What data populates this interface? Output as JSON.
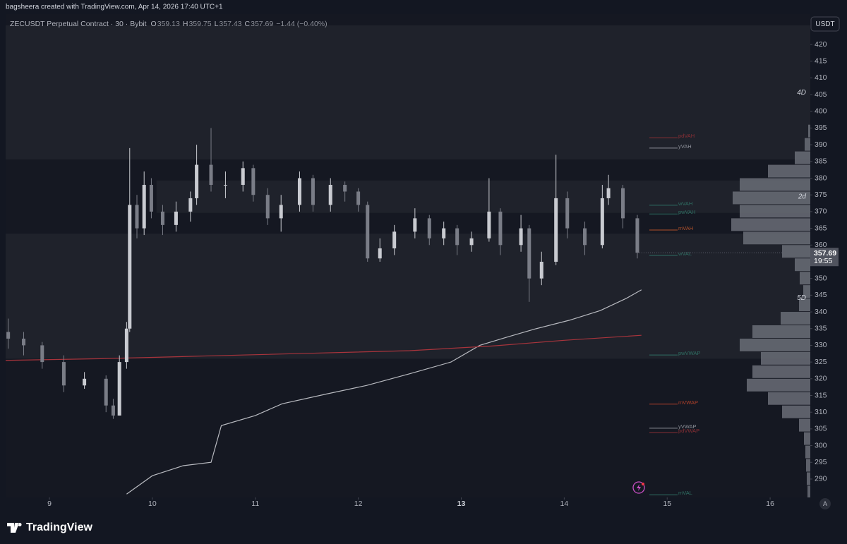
{
  "header": {
    "credit": "bagsheera created with TradingView.com, Apr 14, 2026 17:40 UTC+1",
    "symbol": "ZECUSDT Perpetual Contract · 30 · Bybit",
    "ohlc": [
      {
        "label": "O",
        "value": "359.13"
      },
      {
        "label": "H",
        "value": "359.75"
      },
      {
        "label": "L",
        "value": "357.43"
      },
      {
        "label": "C",
        "value": "357.69"
      }
    ],
    "change": "−1.44 (−0.40%)",
    "currency": "USDT",
    "countdown": "19:55",
    "auto_button": "A"
  },
  "footer": {
    "brand": "TradingView"
  },
  "chart_data": {
    "type": "candlestick",
    "xlim": [
      8.575,
      16.39
    ],
    "ylim": [
      284.5,
      425.7
    ],
    "xticks": [
      9,
      10,
      11,
      12,
      13,
      14,
      15,
      16
    ],
    "highlight_xtick": 13,
    "yticks": [
      290,
      295,
      300,
      305,
      310,
      315,
      320,
      325,
      330,
      335,
      340,
      345,
      350,
      355,
      360,
      365,
      370,
      375,
      380,
      385,
      390,
      395,
      400,
      405,
      410,
      415,
      420
    ],
    "up_color": "#c9cbd1",
    "down_color": "#7a7d87",
    "x": [
      8.6,
      8.75,
      8.93,
      9.14,
      9.34,
      9.55,
      9.62,
      9.68,
      9.75,
      9.78,
      9.85,
      9.92,
      9.99,
      10.1,
      10.23,
      10.37,
      10.43,
      10.57,
      10.71,
      10.88,
      10.98,
      11.12,
      11.25,
      11.43,
      11.56,
      11.73,
      11.87,
      12.0,
      12.09,
      12.21,
      12.35,
      12.55,
      12.69,
      12.83,
      12.96,
      13.1,
      13.27,
      13.38,
      13.58,
      13.66,
      13.78,
      13.92,
      14.03,
      14.2,
      14.37,
      14.43,
      14.57,
      14.71
    ],
    "open": [
      334,
      332,
      330,
      325,
      318,
      320,
      312,
      309,
      325,
      335,
      372,
      365,
      378,
      370,
      366,
      370,
      374,
      384,
      378,
      378,
      383,
      375,
      368,
      372,
      380,
      372,
      378,
      376,
      372,
      356,
      359,
      364,
      368,
      362,
      365,
      360,
      362,
      370,
      360,
      365,
      350,
      355,
      374,
      365,
      360,
      374,
      377,
      368
    ],
    "high": [
      338,
      334,
      331,
      327,
      322,
      321,
      314,
      327,
      337,
      389,
      375,
      382,
      380,
      372,
      373,
      376,
      390,
      395,
      382,
      385,
      384,
      377,
      375,
      382,
      381,
      380,
      379,
      377,
      373,
      362,
      366,
      371,
      369,
      367,
      366,
      364,
      380,
      371,
      369,
      366,
      358,
      387,
      376,
      367,
      378,
      381,
      378,
      369
    ],
    "low": [
      329,
      327,
      323,
      316,
      317,
      310,
      308,
      309,
      323,
      334,
      362,
      363,
      368,
      363,
      364,
      367,
      372,
      376,
      374,
      376,
      373,
      366,
      364,
      370,
      370,
      370,
      373,
      370,
      355,
      355,
      357,
      362,
      360,
      360,
      357,
      358,
      361,
      357,
      358,
      343,
      348,
      354,
      362,
      357,
      359,
      372,
      365,
      356
    ],
    "close": [
      332,
      330,
      325,
      318,
      320,
      312,
      309,
      325,
      335,
      372,
      365,
      378,
      370,
      366,
      370,
      374,
      384,
      378,
      378,
      383,
      375,
      368,
      372,
      380,
      372,
      378,
      376,
      372,
      356,
      359,
      364,
      368,
      362,
      365,
      360,
      362,
      370,
      360,
      365,
      350,
      355,
      374,
      365,
      360,
      374,
      377,
      368,
      357.69
    ],
    "zones": [
      {
        "from": 385.6,
        "to": 425.7,
        "color": "#1f222b"
      },
      {
        "from": 326,
        "to": 363.4,
        "color": "#1f222b"
      },
      {
        "from": 369.6,
        "to": 379.3,
        "x_from": 10.04,
        "color": "#1f222b"
      }
    ],
    "lines": [
      {
        "color": "#b8bac0",
        "x": [
          9.75,
          10.0,
          10.3,
          10.57,
          10.67,
          11.0,
          11.26,
          11.7,
          12.08,
          12.5,
          12.9,
          13.18,
          13.45,
          13.73,
          14.05,
          14.35,
          14.6,
          14.75
        ],
        "values": [
          285.5,
          291,
          294,
          295,
          306,
          309,
          312.5,
          315.5,
          318,
          321.5,
          325,
          330,
          332.5,
          335,
          337.5,
          340.4,
          344,
          346.6
        ]
      },
      {
        "color": "#a8343c",
        "x": [
          8.575,
          9.5,
          10.5,
          11.5,
          12.5,
          13.3,
          14.0,
          14.75
        ],
        "values": [
          325.5,
          326,
          326.8,
          327.6,
          328.4,
          329.8,
          331.5,
          333
        ]
      }
    ],
    "levels": [
      {
        "label": "pdVAH",
        "value": 392.1,
        "color": "#8a2f35"
      },
      {
        "label": "yVAH",
        "value": 389,
        "color": "#8d9099"
      },
      {
        "label": "wVAH",
        "value": 371.9,
        "color": "#2f6f63"
      },
      {
        "label": "pwVAH",
        "value": 369.3,
        "color": "#2f6f63"
      },
      {
        "label": "mVAH",
        "value": 364.5,
        "color": "#b0502a"
      },
      {
        "label": "wVAL",
        "value": 356.9,
        "color": "#2f6f63"
      },
      {
        "label": "pwVWAP",
        "value": 327.1,
        "color": "#2f6f63"
      },
      {
        "label": "mVWAP",
        "value": 312.4,
        "color": "#b0402a"
      },
      {
        "label": "yVWAP",
        "value": 305.2,
        "color": "#8d9099"
      },
      {
        "label": "pdVWAP",
        "value": 303.9,
        "color": "#8a2f35"
      },
      {
        "label": "mVAL",
        "value": 285.3,
        "color": "#2f6f63"
      }
    ],
    "profile": {
      "color": "#6a6d77",
      "prices": [
        394,
        390,
        386,
        382,
        378,
        374,
        370,
        366,
        362,
        358,
        354,
        350,
        346,
        342,
        338,
        334,
        330,
        326,
        322,
        318,
        314,
        310,
        306,
        302,
        298,
        294,
        290,
        286
      ],
      "volumes": [
        3,
        8,
        22,
        60,
        100,
        110,
        100,
        112,
        95,
        40,
        22,
        15,
        10,
        16,
        42,
        82,
        100,
        70,
        82,
        90,
        60,
        40,
        16,
        9,
        7,
        6,
        5,
        4
      ]
    },
    "annotations": [
      {
        "text": "4D",
        "value": 405.6
      },
      {
        "text": "2d",
        "value": 374.4
      },
      {
        "text": "5D",
        "value": 344.2
      }
    ]
  }
}
